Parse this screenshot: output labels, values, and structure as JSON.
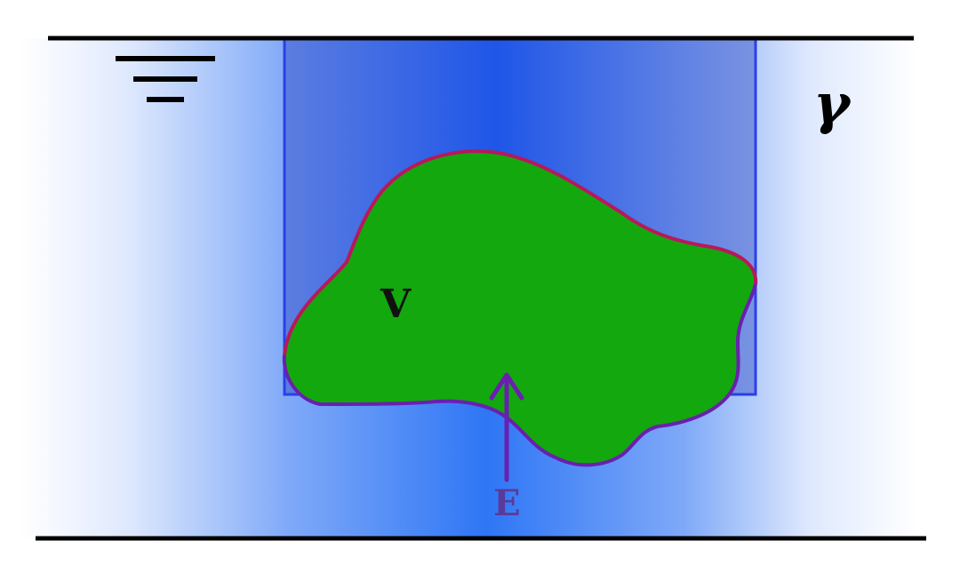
{
  "labels": {
    "volume": "V",
    "force": "E",
    "specific_weight": "γ"
  },
  "colors": {
    "water_edge": "#ffffff",
    "water_center": "#2e76f5",
    "column_center": "#1f56e8",
    "column_edge": "#5c7de0",
    "column_outline": "#2a3fe8",
    "body_fill": "#13a80e",
    "body_top_outline": "#b8185a",
    "body_bottom_outline": "#6a1fb0",
    "arrow": "#6a1fb0",
    "force_label": "#5a3a9a",
    "boundary_lines": "#000000"
  }
}
